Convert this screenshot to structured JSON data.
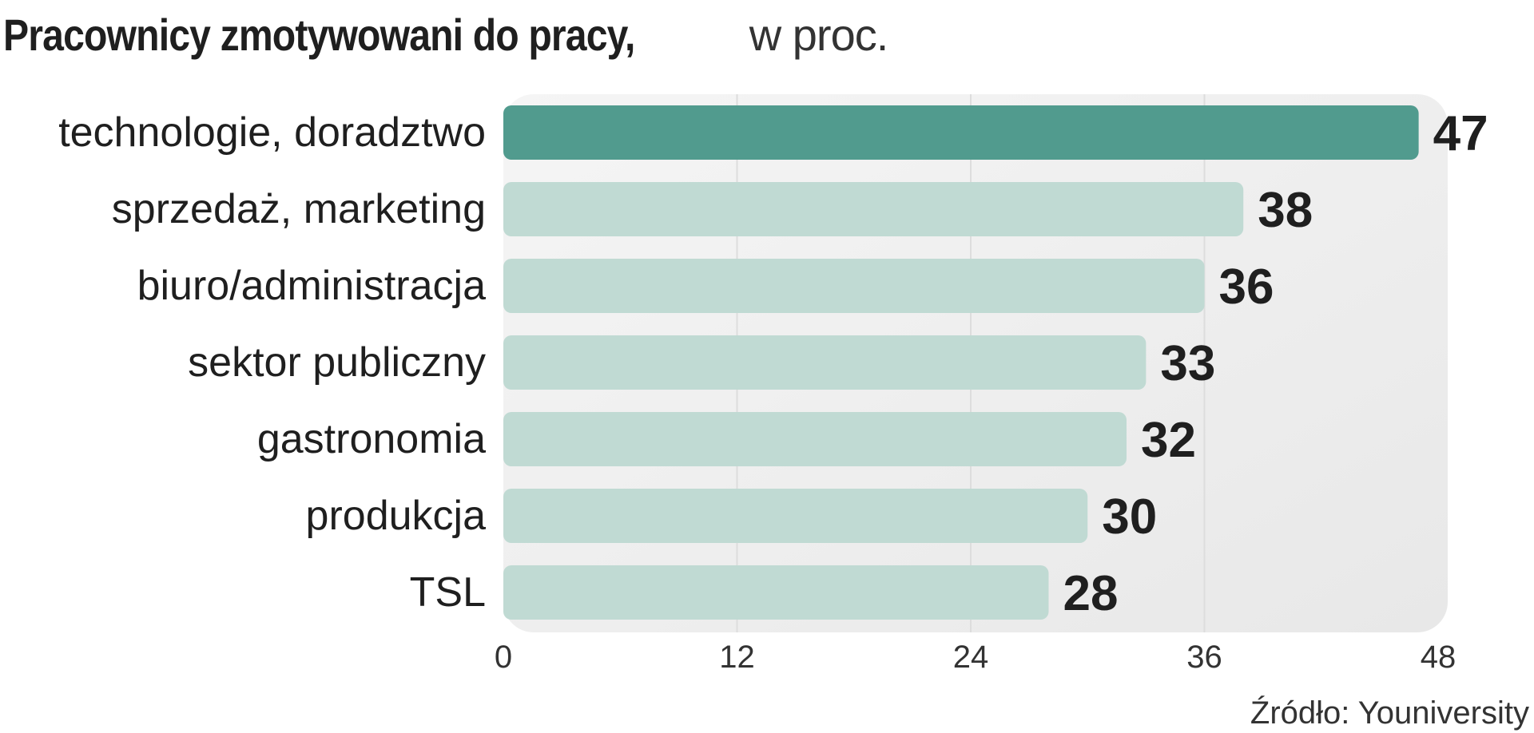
{
  "chart_data": {
    "type": "bar",
    "orientation": "horizontal",
    "title": "Pracownicy zmotywowani do pracy,",
    "subtitle": "w proc.",
    "categories": [
      "technologie, doradztwo",
      "sprzedaż, marketing",
      "biuro/administracja",
      "sektor publiczny",
      "gastronomia",
      "produkcja",
      "TSL"
    ],
    "values": [
      47,
      38,
      36,
      33,
      32,
      30,
      28
    ],
    "xlim": [
      0,
      48
    ],
    "xticks": [
      0,
      12,
      24,
      36,
      48
    ],
    "grid": true,
    "highlight_index": 0,
    "colors": {
      "highlight": "#519b8e",
      "bar": "#c0dad3",
      "panel": "#efefef",
      "grid": "#dddddd",
      "text": "#1f1f1f"
    },
    "source": "Źródło: Youniversity"
  }
}
